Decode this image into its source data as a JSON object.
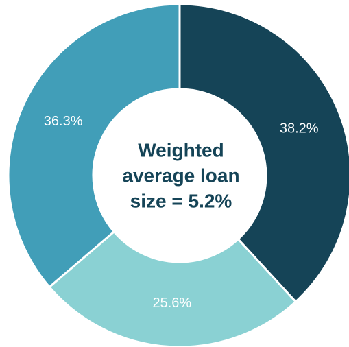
{
  "chart_data": {
    "type": "donut",
    "categories": [
      null,
      null,
      null
    ],
    "values": [
      38.2,
      25.6,
      36.3
    ],
    "value_labels": [
      "38.2%",
      "25.6%",
      "36.3%"
    ],
    "colors": [
      "#154457",
      "#8ad1d3",
      "#419eb8"
    ],
    "center_label": [
      "Weighted",
      "average loan",
      "size = 5.2%"
    ]
  }
}
